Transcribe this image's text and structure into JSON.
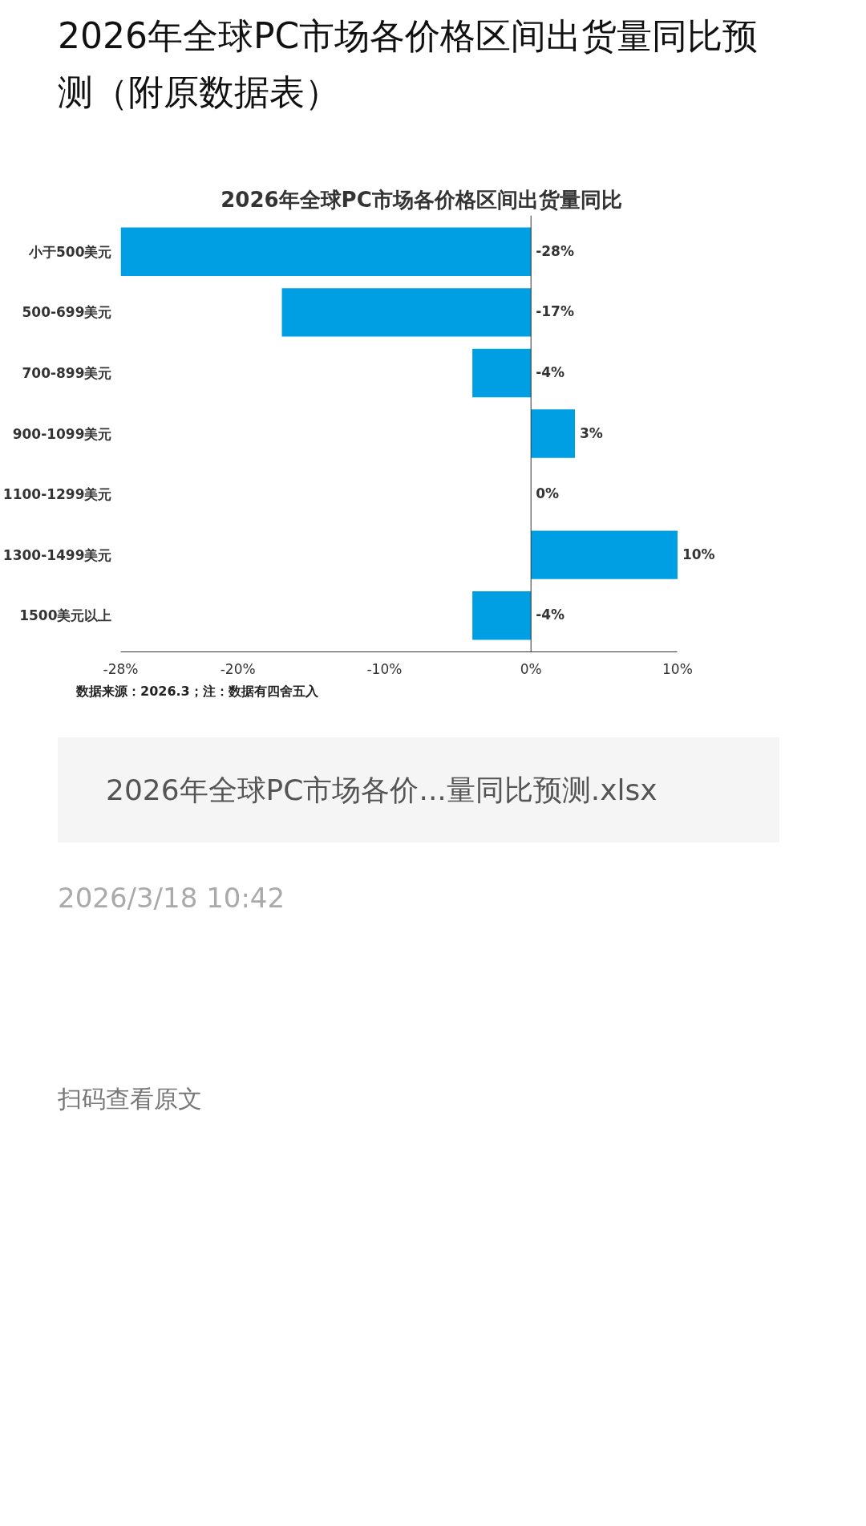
{
  "chart_data": {
    "type": "bar",
    "orientation": "horizontal",
    "title": "2026年全球PC市场各价格区间出货量同比预测（附原数据表）",
    "subtitle": "2026年全球PC市场各价格区间出货量同比",
    "categories": [
      "小于500美元",
      "500-699美元",
      "700-899美元",
      "900-1099美元",
      "1100-1299美元",
      "1300-1499美元",
      "1500美元以上"
    ],
    "values": [
      -28,
      -17,
      -4,
      3,
      0,
      10,
      -4
    ],
    "color": "#009fe3",
    "value_labels": [
      "-28%",
      "-17%",
      "-4%",
      "3%",
      "0%",
      "10%",
      "-4%"
    ],
    "xlim": [
      -28,
      10
    ],
    "xticks": [
      {
        "value": -28,
        "label": "-28%"
      },
      {
        "value": -20,
        "label": "-20%"
      },
      {
        "value": -10,
        "label": "-10%"
      },
      {
        "value": 0,
        "label": "0%"
      },
      {
        "value": 10,
        "label": "10%"
      }
    ],
    "grid": false,
    "legend": false,
    "ref_lines": [
      {
        "axis": "x",
        "value": 0,
        "color": "#333333"
      }
    ],
    "annotations": [
      "数据来源：2026.3；注：数据有四舍五入",
      "2026年全球PC市场各价...量同比预测.xlsx",
      "2026/3/18 10:42",
      "扫码查看原文"
    ]
  }
}
